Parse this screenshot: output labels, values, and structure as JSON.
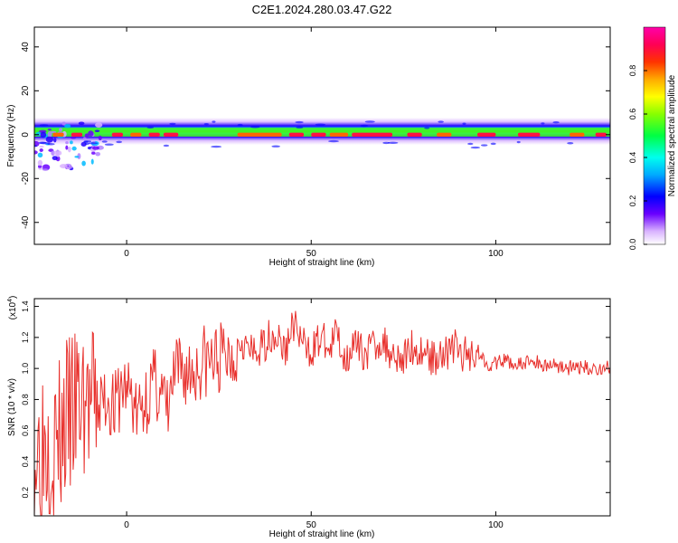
{
  "title": "C2E1.2024.280.03.47.G22",
  "chart_data": [
    {
      "type": "heatmap",
      "title": "C2E1.2024.280.03.47.G22",
      "xlabel": "Height of straight line (km)",
      "ylabel": "Frequency (Hz)",
      "xlim": [
        -25,
        131
      ],
      "ylim": [
        -50,
        49
      ],
      "xticks": [
        "0",
        "50",
        "100"
      ],
      "yticks": [
        "40",
        "20",
        "0",
        "-20",
        "-40"
      ],
      "colorbar": {
        "label": "Normalized spectral amplitude",
        "range": [
          0,
          1
        ],
        "ticks": [
          "0.0",
          "0.2",
          "0.4",
          "0.6",
          "0.8"
        ],
        "colormap": "rainbow (violet → blue → cyan → green → yellow → orange → red → magenta)"
      },
      "dominant_band_hz": [
        -2,
        2
      ]
    },
    {
      "type": "line",
      "xlabel": "Height of straight line (km)",
      "ylabel": "SNR (10 * v/v)",
      "exponent_label": "(x10",
      "exponent_power": "4",
      "exponent_close": ")",
      "color": "#e8302c",
      "xlim": [
        -25,
        131
      ],
      "ylim": [
        0.05,
        1.45
      ],
      "xticks": [
        "0",
        "50",
        "100"
      ],
      "yticks": [
        "0.2",
        "0.4",
        "0.6",
        "0.8",
        "1.0",
        "1.2",
        "1.4"
      ],
      "x": [
        -25,
        -23,
        -21,
        -19,
        -17,
        -15,
        -13,
        -11,
        -9,
        -7,
        -5,
        -3,
        -1,
        1,
        3,
        5,
        7,
        9,
        11,
        13,
        15,
        17,
        19,
        21,
        23,
        25,
        27,
        29,
        31,
        33,
        35,
        37,
        39,
        41,
        43,
        45,
        47,
        49,
        51,
        53,
        55,
        57,
        59,
        61,
        63,
        65,
        67,
        69,
        71,
        73,
        75,
        77,
        79,
        81,
        83,
        85,
        87,
        89,
        91,
        93,
        95,
        97,
        99,
        101,
        103,
        105,
        107,
        109,
        111,
        113,
        115,
        117,
        119,
        121,
        123,
        125,
        127,
        129,
        131
      ],
      "y": [
        0.45,
        0.55,
        0.6,
        0.5,
        0.62,
        0.7,
        0.75,
        0.8,
        0.72,
        0.78,
        0.82,
        0.74,
        0.88,
        0.85,
        0.68,
        0.8,
        0.9,
        0.88,
        0.7,
        0.95,
        0.98,
        0.97,
        1.0,
        1.05,
        1.04,
        1.06,
        1.08,
        1.1,
        1.2,
        1.12,
        1.08,
        1.15,
        1.22,
        1.2,
        1.1,
        1.3,
        1.2,
        1.1,
        1.15,
        1.2,
        1.1,
        1.25,
        1.05,
        1.15,
        1.12,
        1.1,
        1.15,
        1.18,
        1.12,
        1.1,
        1.05,
        1.15,
        1.1,
        1.12,
        1.05,
        1.12,
        1.1,
        1.15,
        1.08,
        1.1,
        1.12,
        1.05,
        1.02,
        1.04,
        1.05,
        1.03,
        1.02,
        1.05,
        1.04,
        1.02,
        1.03,
        1.02,
        1.01,
        1.0,
        1.01,
        1.0,
        1.0,
        1.0,
        1.01
      ]
    }
  ]
}
